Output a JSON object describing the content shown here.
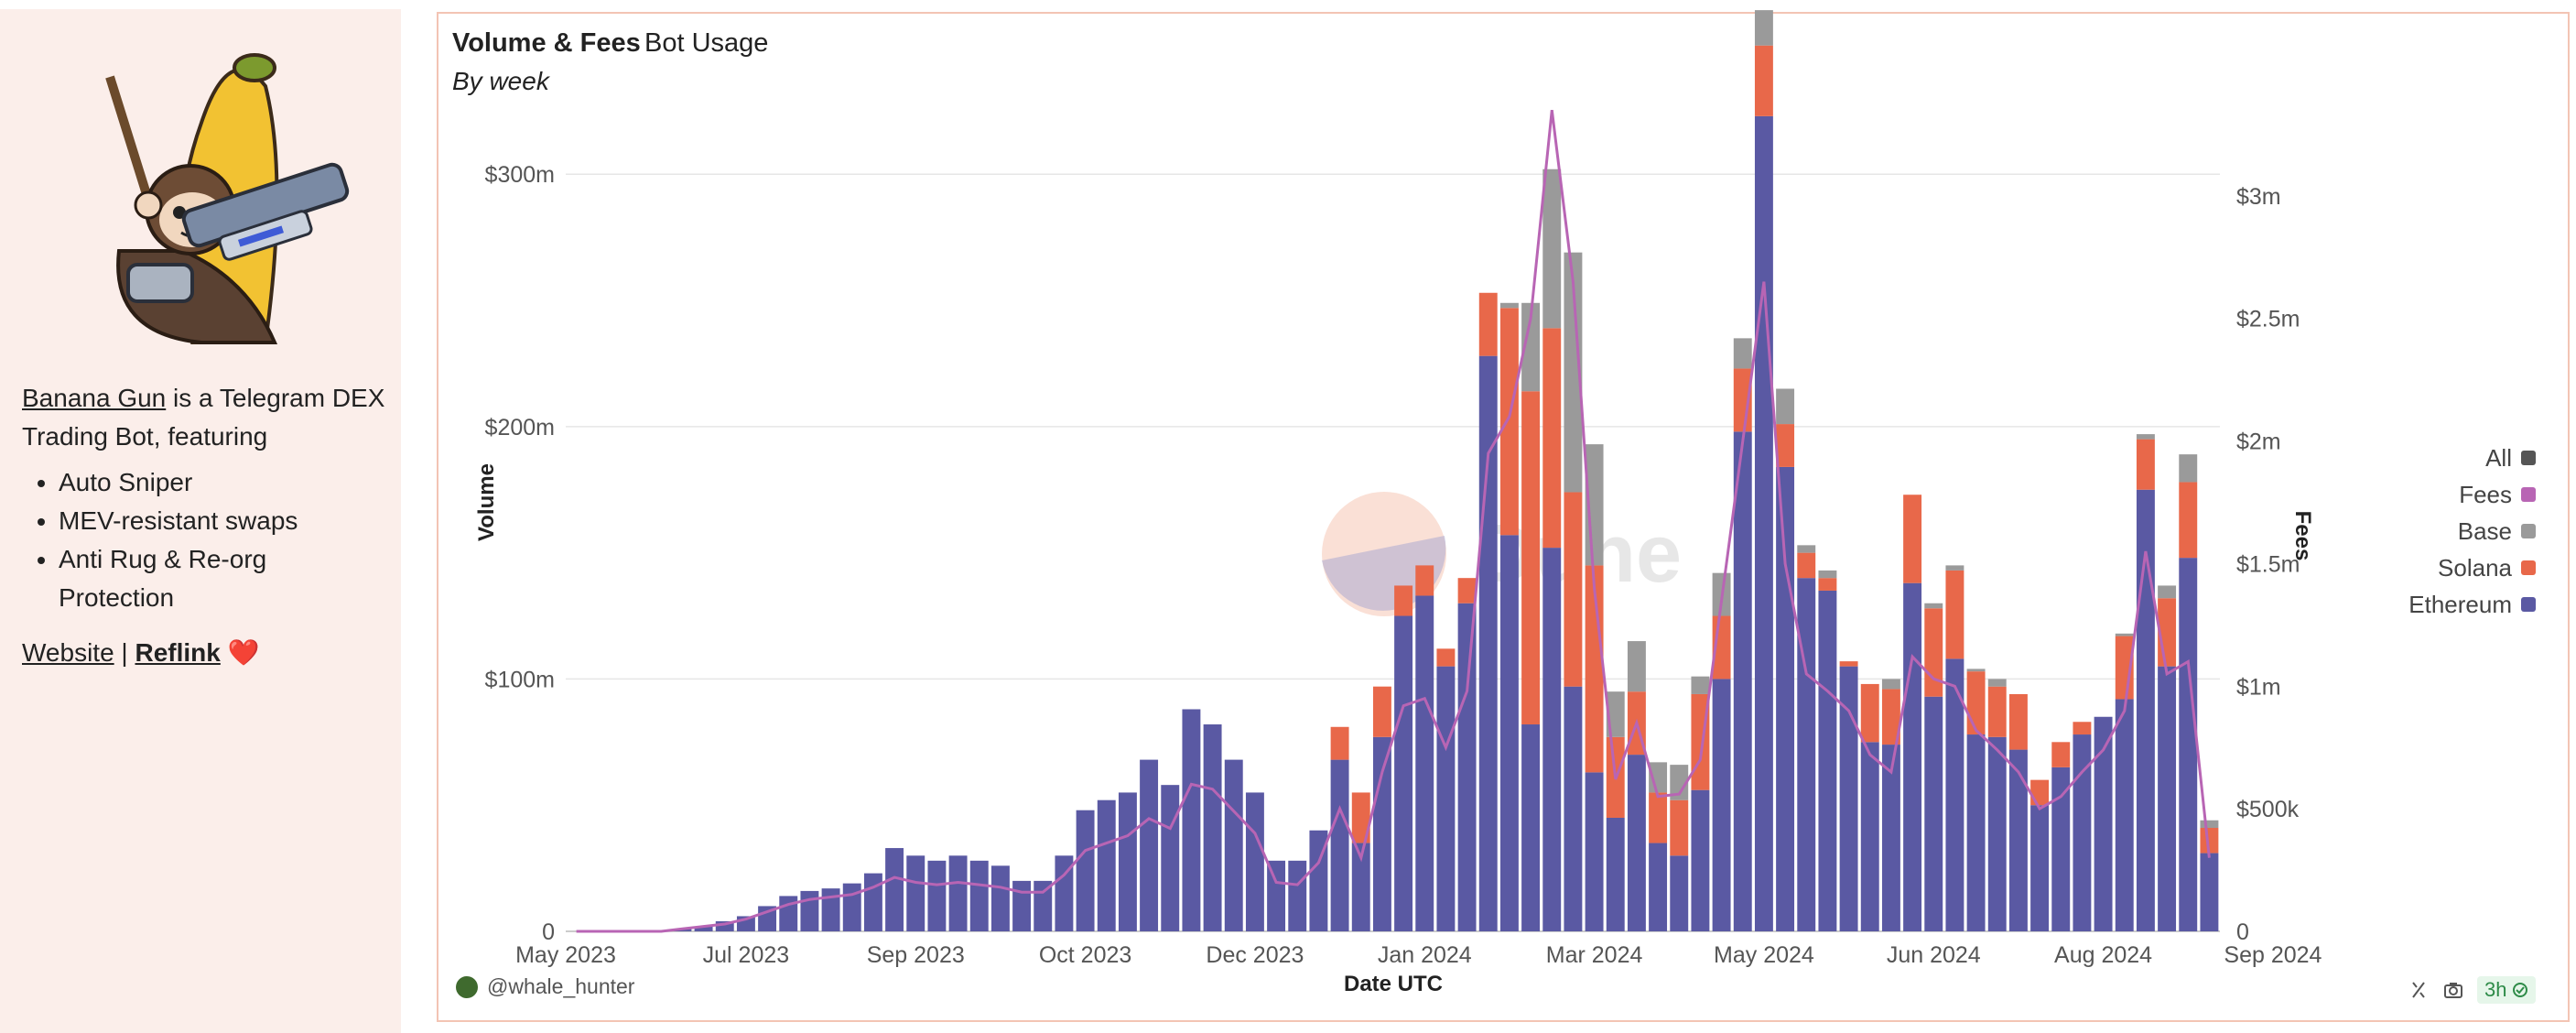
{
  "sidebar": {
    "link_name": "Banana Gun",
    "intro": " is a Telegram DEX Trading Bot, featuring",
    "features": [
      "Auto Sniper",
      "MEV-resistant swaps",
      "Anti Rug & Re-org Protection"
    ],
    "website": "Website",
    "separator": "|",
    "reflink": "Reflink",
    "heart": "❤️"
  },
  "header": {
    "title": "Volume & Fees",
    "tab2": "Bot Usage",
    "subtitle": "By week"
  },
  "footer": {
    "user": "@whale_hunter",
    "age": "3h"
  },
  "watermark": "Dune",
  "colors": {
    "ethereum": "#5a59a3",
    "solana": "#e8684a",
    "base": "#9a9a9a",
    "all": "#555555",
    "fees": "#b865b4"
  },
  "chart_data": {
    "type": "bar",
    "stacked": true,
    "title": "Volume & Fees",
    "xlabel": "Date UTC",
    "ylabel": "Volume",
    "y2label": "Fees",
    "ylim": [
      0,
      340
    ],
    "y2lim": [
      0,
      3.5
    ],
    "yticks": [
      0,
      100,
      200,
      300
    ],
    "ytick_labels": [
      "0",
      "$100m",
      "$200m",
      "$300m"
    ],
    "y2ticks": [
      0,
      0.5,
      1,
      1.5,
      2,
      2.5,
      3
    ],
    "y2tick_labels": [
      "0",
      "$500k",
      "$1m",
      "$1.5m",
      "$2m",
      "$2.5m",
      "$3m"
    ],
    "xtick_labels": [
      "May 2023",
      "Jul 2023",
      "Sep 2023",
      "Oct 2023",
      "Dec 2023",
      "Jan 2024",
      "Mar 2024",
      "May 2024",
      "Jun 2024",
      "Aug 2024",
      "Sep 2024"
    ],
    "xtick_positions": [
      0,
      8.5,
      16.5,
      24.5,
      32.5,
      40.5,
      48.5,
      56.5,
      64.5,
      72.5,
      80.5
    ],
    "legend": [
      "All",
      "Fees",
      "Base",
      "Solana",
      "Ethereum"
    ],
    "series": [
      {
        "name": "Ethereum",
        "values": [
          0,
          0,
          0,
          0,
          0,
          1,
          2,
          4,
          6,
          10,
          14,
          16,
          17,
          19,
          23,
          33,
          30,
          28,
          30,
          28,
          26,
          20,
          20,
          30,
          48,
          52,
          55,
          68,
          58,
          88,
          82,
          68,
          55,
          28,
          28,
          40,
          68,
          35,
          77,
          125,
          133,
          105,
          130,
          228,
          157,
          82,
          152,
          97,
          63,
          45,
          70,
          35,
          30,
          56,
          100,
          198,
          323,
          184,
          140,
          135,
          105,
          75,
          74,
          138,
          93,
          108,
          78,
          77,
          72,
          50,
          65,
          78,
          85,
          92,
          175,
          105,
          148,
          31
        ]
      },
      {
        "name": "Solana",
        "values": [
          0,
          0,
          0,
          0,
          0,
          0,
          0,
          0,
          0,
          0,
          0,
          0,
          0,
          0,
          0,
          0,
          0,
          0,
          0,
          0,
          0,
          0,
          0,
          0,
          0,
          0,
          0,
          0,
          0,
          0,
          0,
          0,
          0,
          0,
          0,
          0,
          13,
          20,
          20,
          12,
          12,
          7,
          10,
          25,
          90,
          132,
          87,
          77,
          82,
          32,
          25,
          20,
          22,
          38,
          25,
          25,
          28,
          17,
          10,
          5,
          2,
          23,
          22,
          35,
          35,
          35,
          25,
          20,
          22,
          10,
          10,
          5,
          0,
          25,
          20,
          27,
          30,
          10
        ]
      },
      {
        "name": "Base",
        "values": [
          0,
          0,
          0,
          0,
          0,
          0,
          0,
          0,
          0,
          0,
          0,
          0,
          0,
          0,
          0,
          0,
          0,
          0,
          0,
          0,
          0,
          0,
          0,
          0,
          0,
          0,
          0,
          0,
          0,
          0,
          0,
          0,
          0,
          0,
          0,
          0,
          0,
          0,
          0,
          0,
          0,
          0,
          0,
          0,
          2,
          35,
          63,
          95,
          48,
          18,
          20,
          12,
          14,
          7,
          17,
          12,
          14,
          14,
          3,
          3,
          0,
          0,
          4,
          0,
          2,
          2,
          1,
          3,
          0,
          0,
          0,
          0,
          0,
          1,
          2,
          5,
          11,
          3
        ]
      },
      {
        "name": "Fees",
        "axis": "right",
        "values": [
          0,
          0,
          0,
          0,
          0,
          0.01,
          0.02,
          0.03,
          0.05,
          0.08,
          0.11,
          0.13,
          0.14,
          0.15,
          0.18,
          0.22,
          0.2,
          0.19,
          0.2,
          0.19,
          0.18,
          0.16,
          0.16,
          0.23,
          0.33,
          0.36,
          0.39,
          0.46,
          0.42,
          0.6,
          0.58,
          0.49,
          0.4,
          0.2,
          0.19,
          0.28,
          0.5,
          0.3,
          0.65,
          0.92,
          0.95,
          0.75,
          0.98,
          1.95,
          2.1,
          2.5,
          3.35,
          2.65,
          1.4,
          0.62,
          0.85,
          0.55,
          0.56,
          0.7,
          1.35,
          2.0,
          2.65,
          1.5,
          1.05,
          0.98,
          0.9,
          0.72,
          0.65,
          1.12,
          1.03,
          1.0,
          0.82,
          0.74,
          0.65,
          0.5,
          0.55,
          0.65,
          0.74,
          0.9,
          1.55,
          1.05,
          1.1,
          0.3
        ]
      }
    ]
  }
}
